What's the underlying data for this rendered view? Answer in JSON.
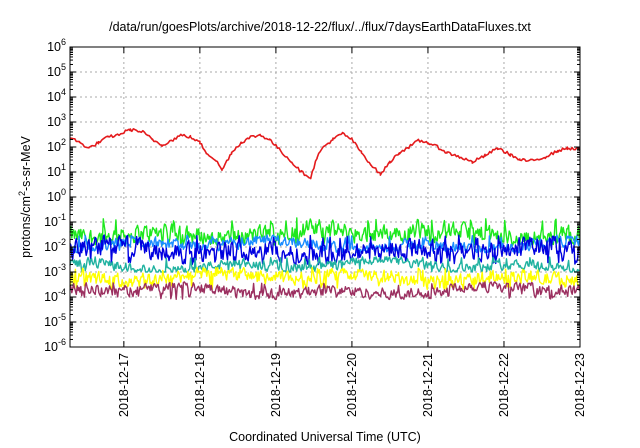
{
  "chart_data": {
    "type": "line",
    "title": "/data/run/goesPlots/archive/2018-12-22/flux/../flux/7daysEarthDataFluxes.txt",
    "xlabel": "Coordinated Universal Time (UTC)",
    "ylabel": {
      "prefix": "protons/cm",
      "exponent": "2",
      "suffix": "-s-sr-MeV"
    },
    "y_scale": "log",
    "ylim": [
      1e-06,
      1000000.0
    ],
    "y_ticks": [
      {
        "value": 1e-06,
        "base": "10",
        "exp": "-6"
      },
      {
        "value": 1e-05,
        "base": "10",
        "exp": "-5"
      },
      {
        "value": 0.0001,
        "base": "10",
        "exp": "-4"
      },
      {
        "value": 0.001,
        "base": "10",
        "exp": "-3"
      },
      {
        "value": 0.01,
        "base": "10",
        "exp": "-2"
      },
      {
        "value": 0.1,
        "base": "10",
        "exp": "-1"
      },
      {
        "value": 1,
        "base": "10",
        "exp": "0"
      },
      {
        "value": 10,
        "base": "10",
        "exp": "1"
      },
      {
        "value": 100,
        "base": "10",
        "exp": "2"
      },
      {
        "value": 1000,
        "base": "10",
        "exp": "3"
      },
      {
        "value": 10000,
        "base": "10",
        "exp": "4"
      },
      {
        "value": 100000,
        "base": "10",
        "exp": "5"
      },
      {
        "value": 1000000,
        "base": "10",
        "exp": "6"
      }
    ],
    "xlim": [
      "2018-12-16 07:00",
      "2018-12-23 00:00"
    ],
    "x_ticks": [
      "2018-12-17",
      "2018-12-18",
      "2018-12-19",
      "2018-12-20",
      "2018-12-21",
      "2018-12-22",
      "2018-12-23"
    ],
    "grid": true,
    "series": [
      {
        "color": "#e41a1c",
        "x": [
          "2018-12-16 07:00",
          "2018-12-16 10:00",
          "2018-12-16 13:00",
          "2018-12-16 16:00",
          "2018-12-16 19:00",
          "2018-12-16 22:00",
          "2018-12-17 02:00",
          "2018-12-17 06:00",
          "2018-12-17 09:00",
          "2018-12-17 12:00",
          "2018-12-17 15:00",
          "2018-12-17 18:00",
          "2018-12-17 21:00",
          "2018-12-18 00:00",
          "2018-12-18 02:00",
          "2018-12-18 05:00",
          "2018-12-18 07:00",
          "2018-12-18 10:00",
          "2018-12-18 13:00",
          "2018-12-18 16:00",
          "2018-12-18 19:00",
          "2018-12-18 22:00",
          "2018-12-19 02:00",
          "2018-12-19 05:00",
          "2018-12-19 08:00",
          "2018-12-19 11:00",
          "2018-12-19 13:00",
          "2018-12-19 15:00",
          "2018-12-19 18:00",
          "2018-12-19 21:00",
          "2018-12-20 00:00",
          "2018-12-20 03:00",
          "2018-12-20 06:00",
          "2018-12-20 09:00",
          "2018-12-20 12:00",
          "2018-12-20 15:00",
          "2018-12-20 18:00",
          "2018-12-20 21:00",
          "2018-12-21 00:00",
          "2018-12-21 03:00",
          "2018-12-21 06:00",
          "2018-12-21 10:00",
          "2018-12-21 14:00",
          "2018-12-21 18:00",
          "2018-12-21 22:00",
          "2018-12-22 02:00",
          "2018-12-22 05:00",
          "2018-12-22 09:00",
          "2018-12-22 13:00",
          "2018-12-22 17:00",
          "2018-12-22 20:00",
          "2018-12-23 00:00"
        ],
        "y": [
          250,
          150,
          90,
          150,
          250,
          300,
          500,
          400,
          200,
          120,
          180,
          300,
          250,
          150,
          60,
          30,
          12,
          60,
          150,
          250,
          300,
          200,
          60,
          25,
          10,
          6,
          40,
          100,
          200,
          350,
          200,
          60,
          20,
          8,
          25,
          60,
          100,
          180,
          150,
          100,
          60,
          40,
          25,
          45,
          90,
          50,
          30,
          28,
          40,
          70,
          90,
          80
        ]
      },
      {
        "color": "#1ee81e",
        "x": [
          "2018-12-16 07:00",
          "2018-12-23 00:00"
        ],
        "y_mean": 0.035,
        "y_min": 0.012,
        "y_max": 0.15
      },
      {
        "color": "#1a8cff",
        "x": [
          "2018-12-16 07:00",
          "2018-12-23 00:00"
        ],
        "y_mean": 0.012,
        "y_min": 0.006,
        "y_max": 0.03
      },
      {
        "color": "#0000e0",
        "x": [
          "2018-12-16 07:00",
          "2018-12-23 00:00"
        ],
        "y_mean": 0.007,
        "y_min": 0.002,
        "y_max": 0.03
      },
      {
        "color": "#20b2a0",
        "x": [
          "2018-12-16 07:00",
          "2018-12-23 00:00"
        ],
        "y_mean": 0.0018,
        "y_min": 0.001,
        "y_max": 0.004
      },
      {
        "color": "#ffff00",
        "x": [
          "2018-12-16 07:00",
          "2018-12-23 00:00"
        ],
        "y_mean": 0.0006,
        "y_min": 0.0002,
        "y_max": 0.0015
      },
      {
        "color": "#9b3060",
        "x": [
          "2018-12-16 07:00",
          "2018-12-23 00:00"
        ],
        "y_mean": 0.00018,
        "y_min": 8e-05,
        "y_max": 0.0004
      }
    ]
  }
}
